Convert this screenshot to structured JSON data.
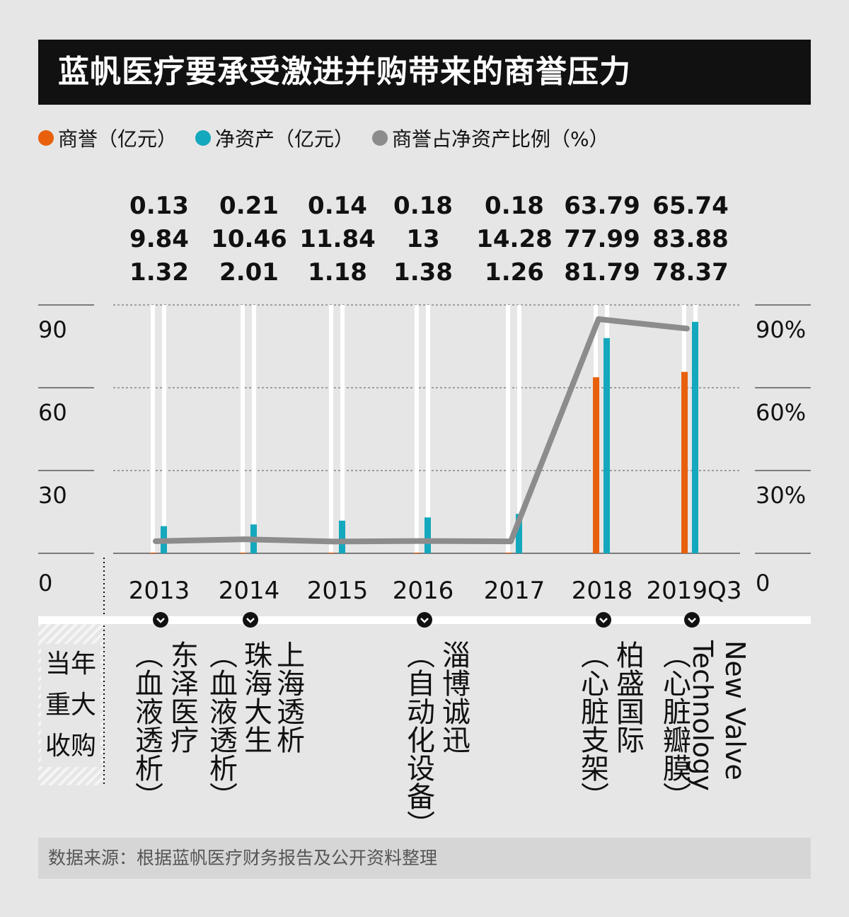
{
  "title": "蓝帆医疗要承受激进并购带来的商誉压力",
  "legend": [
    {
      "label": "商誉（亿元）",
      "color": "#e8600c"
    },
    {
      "label": "净资产（亿元）",
      "color": "#13a8bd"
    },
    {
      "label": "商誉占净资产比例（%）",
      "color": "#8c8c8c"
    }
  ],
  "value_table": [
    {
      "year": "2013",
      "goodwill": "0.13",
      "net_assets": "9.84",
      "ratio": "1.32"
    },
    {
      "year": "2014",
      "goodwill": "0.21",
      "net_assets": "10.46",
      "ratio": "2.01"
    },
    {
      "year": "2015",
      "goodwill": "0.14",
      "net_assets": "11.84",
      "ratio": "1.18"
    },
    {
      "year": "2016",
      "goodwill": "0.18",
      "net_assets": "13",
      "ratio": "1.38"
    },
    {
      "year": "2017",
      "goodwill": "0.18",
      "net_assets": "14.28",
      "ratio": "1.26"
    },
    {
      "year": "2018",
      "goodwill": "63.79",
      "net_assets": "77.99",
      "ratio": "81.79"
    },
    {
      "year": "2019Q3",
      "goodwill": "65.74",
      "net_assets": "83.88",
      "ratio": "78.37"
    }
  ],
  "left_axis_labels": [
    "0",
    "30",
    "60",
    "90"
  ],
  "right_axis_labels": [
    "0",
    "30%",
    "60%",
    "90%"
  ],
  "acquisitions_label": "当年重大收购",
  "acquisitions": [
    {
      "year": "2013",
      "name": "东泽医疗",
      "note": "（血液透析）"
    },
    {
      "year": "2014",
      "name": "上海透析",
      "name2": "珠海大生",
      "note": "（血液透析）"
    },
    {
      "year": "2016",
      "name": "淄博诚迅",
      "note": "（自动化设备）"
    },
    {
      "year": "2018",
      "name": "柏盛国际",
      "note": "（心脏支架）"
    },
    {
      "year": "2019Q3",
      "name": "New Valve Technology",
      "note": "（心脏瓣膜）"
    }
  ],
  "source": "数据来源：根据蓝帆医疗财务报告及公开资料整理",
  "chart_data": {
    "type": "bar",
    "title": "蓝帆医疗要承受激进并购带来的商誉压力",
    "categories": [
      "2013",
      "2014",
      "2015",
      "2016",
      "2017",
      "2018",
      "2019Q3"
    ],
    "series": [
      {
        "name": "商誉（亿元）",
        "type": "bar",
        "axis": "left",
        "color": "#e8600c",
        "values": [
          0.13,
          0.21,
          0.14,
          0.18,
          0.18,
          63.79,
          65.74
        ]
      },
      {
        "name": "净资产（亿元）",
        "type": "bar",
        "axis": "left",
        "color": "#13a8bd",
        "values": [
          9.84,
          10.46,
          11.84,
          13,
          14.28,
          77.99,
          83.88
        ]
      },
      {
        "name": "商誉占净资产比例（%）",
        "type": "line",
        "axis": "right",
        "color": "#8c8c8c",
        "values": [
          1.32,
          2.01,
          1.18,
          1.38,
          1.26,
          81.79,
          78.37
        ]
      }
    ],
    "ylim": [
      0,
      90
    ],
    "y2lim": [
      0,
      90
    ],
    "yticks": [
      0,
      30,
      60,
      90
    ],
    "grid": true,
    "legend_position": "top-left"
  }
}
